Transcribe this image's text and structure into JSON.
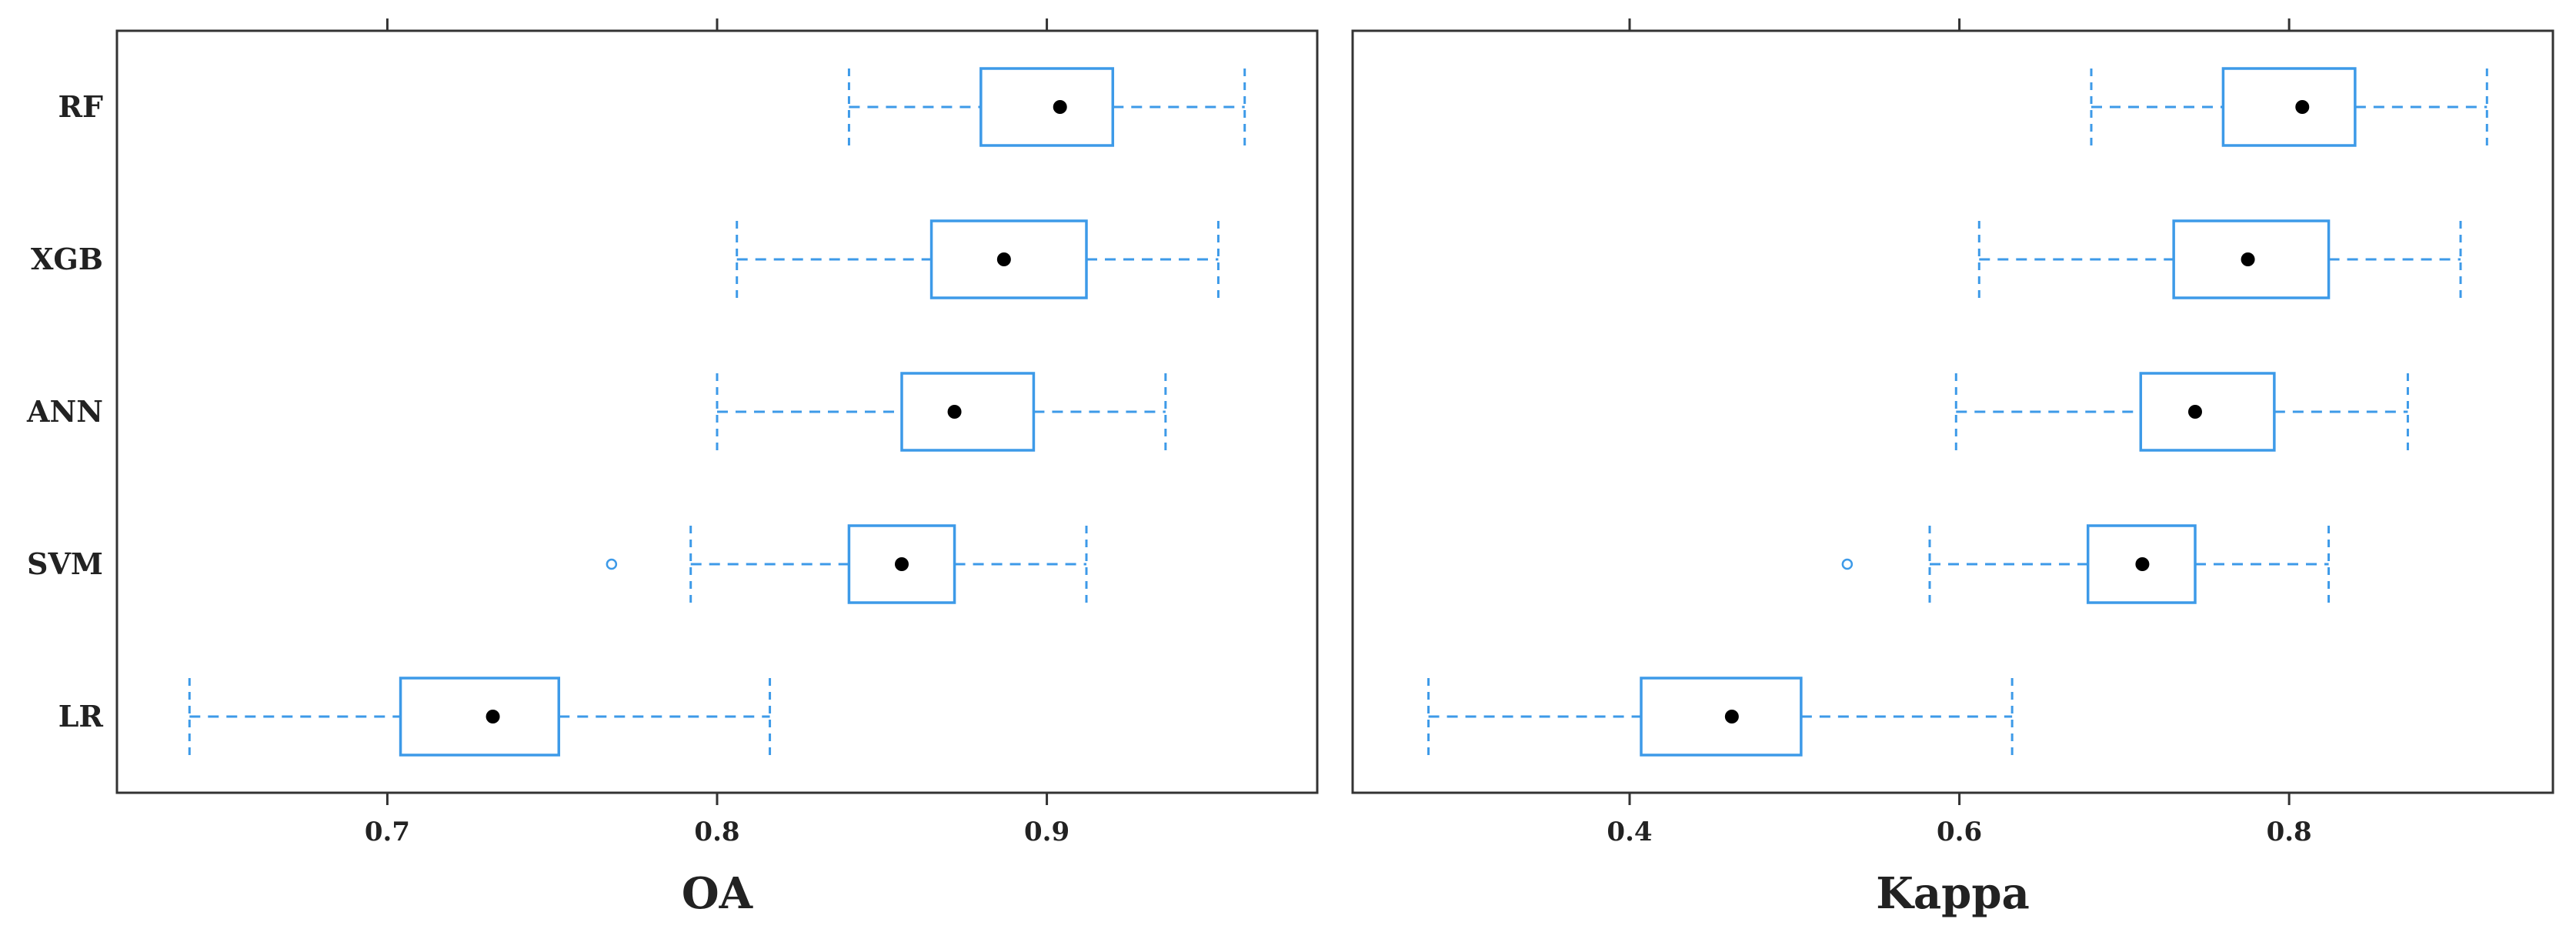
{
  "colors": {
    "box": "#3d9ae8",
    "median": "#000000",
    "frame": "#333333",
    "background": "#ffffff"
  },
  "chart_data": [
    {
      "type": "boxplot",
      "xlabel": "OA",
      "xlim": [
        0.618,
        0.982
      ],
      "xticks": [
        0.7,
        0.8,
        0.9
      ],
      "tick_labels": [
        "0.7",
        "0.8",
        "0.9"
      ],
      "categories": [
        "RF",
        "XGB",
        "ANN",
        "SVM",
        "LR"
      ],
      "boxes": [
        {
          "name": "RF",
          "whisker_low": 0.84,
          "q1": 0.88,
          "median": 0.904,
          "q3": 0.92,
          "whisker_high": 0.96,
          "outliers": []
        },
        {
          "name": "XGB",
          "whisker_low": 0.806,
          "q1": 0.865,
          "median": 0.887,
          "q3": 0.912,
          "whisker_high": 0.952,
          "outliers": []
        },
        {
          "name": "ANN",
          "whisker_low": 0.8,
          "q1": 0.856,
          "median": 0.872,
          "q3": 0.896,
          "whisker_high": 0.936,
          "outliers": []
        },
        {
          "name": "SVM",
          "whisker_low": 0.792,
          "q1": 0.84,
          "median": 0.856,
          "q3": 0.872,
          "whisker_high": 0.912,
          "outliers": [
            0.768
          ]
        },
        {
          "name": "LR",
          "whisker_low": 0.64,
          "q1": 0.704,
          "median": 0.732,
          "q3": 0.752,
          "whisker_high": 0.816,
          "outliers": []
        }
      ],
      "grid": false,
      "legend": "none"
    },
    {
      "type": "boxplot",
      "xlabel": "Kappa",
      "xlim": [
        0.232,
        0.96
      ],
      "xticks": [
        0.4,
        0.6,
        0.8
      ],
      "tick_labels": [
        "0.4",
        "0.6",
        "0.8"
      ],
      "categories": [
        "RF",
        "XGB",
        "ANN",
        "SVM",
        "LR"
      ],
      "boxes": [
        {
          "name": "RF",
          "whisker_low": 0.68,
          "q1": 0.76,
          "median": 0.808,
          "q3": 0.84,
          "whisker_high": 0.92,
          "outliers": []
        },
        {
          "name": "XGB",
          "whisker_low": 0.612,
          "q1": 0.73,
          "median": 0.775,
          "q3": 0.824,
          "whisker_high": 0.904,
          "outliers": []
        },
        {
          "name": "ANN",
          "whisker_low": 0.598,
          "q1": 0.71,
          "median": 0.743,
          "q3": 0.791,
          "whisker_high": 0.872,
          "outliers": []
        },
        {
          "name": "SVM",
          "whisker_low": 0.582,
          "q1": 0.678,
          "median": 0.711,
          "q3": 0.743,
          "whisker_high": 0.824,
          "outliers": [
            0.532
          ]
        },
        {
          "name": "LR",
          "whisker_low": 0.278,
          "q1": 0.407,
          "median": 0.462,
          "q3": 0.504,
          "whisker_high": 0.632,
          "outliers": []
        }
      ],
      "grid": false,
      "legend": "none"
    }
  ]
}
